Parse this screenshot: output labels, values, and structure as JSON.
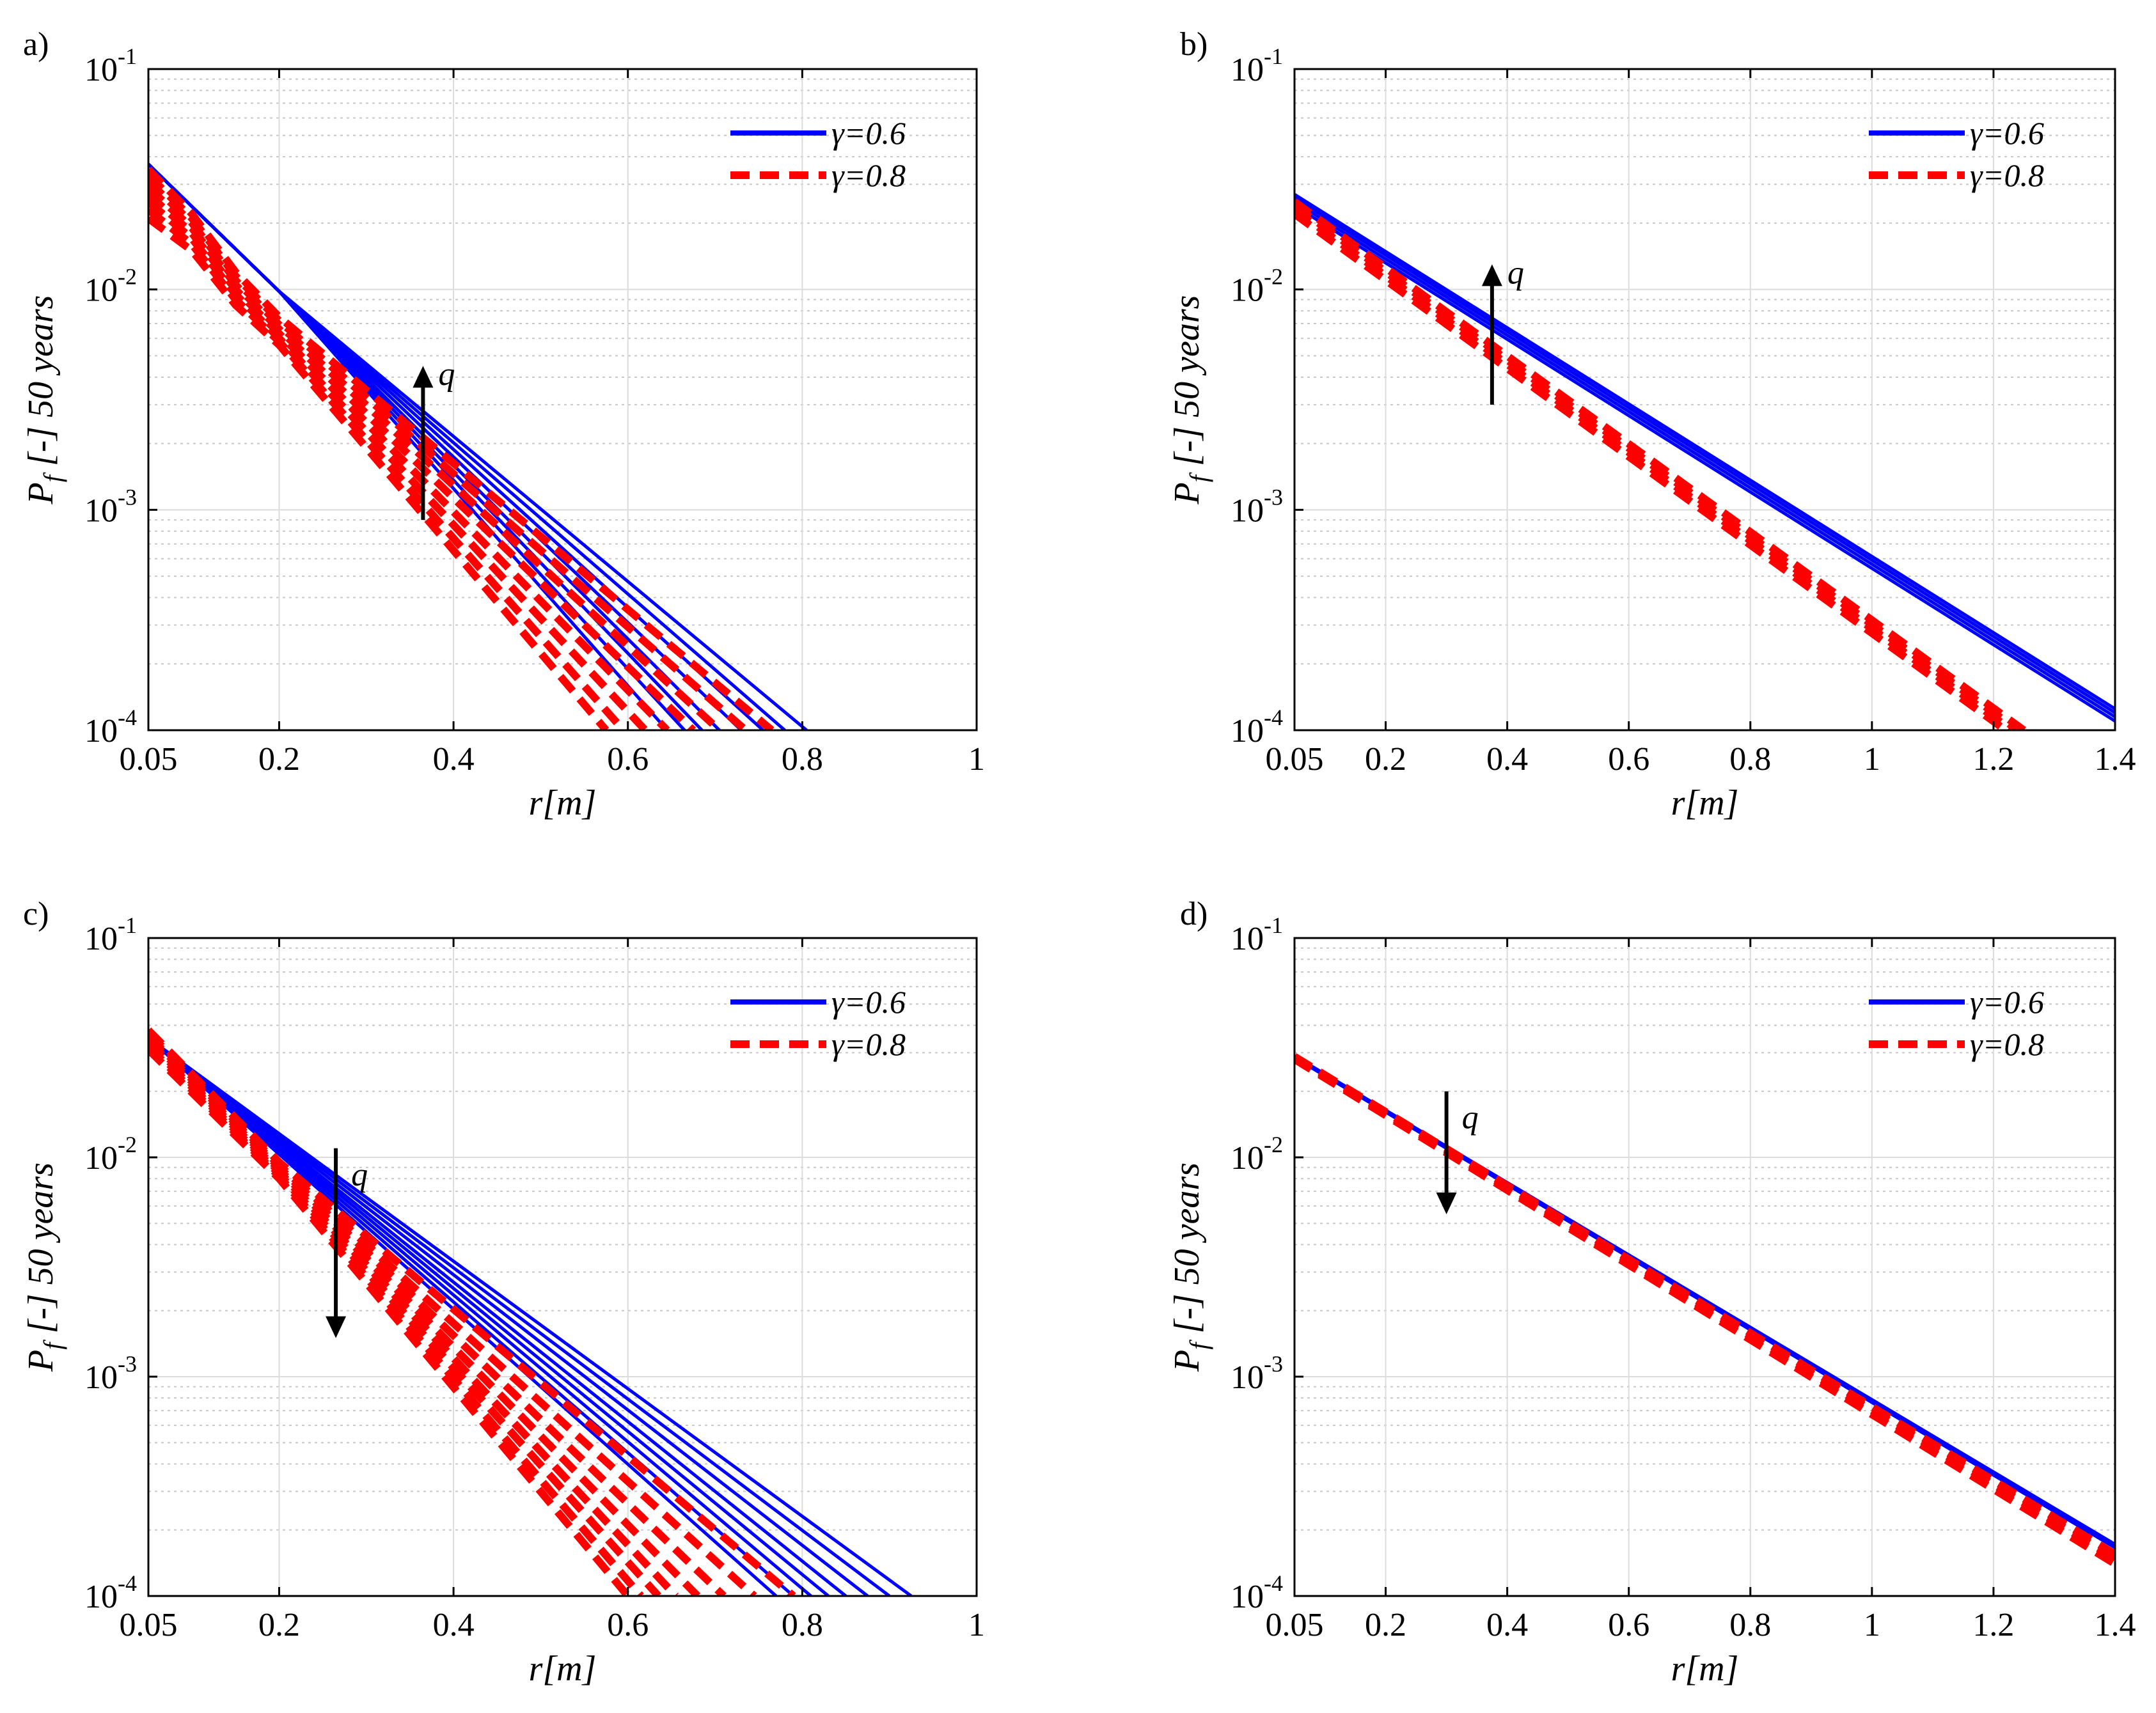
{
  "panels": [
    {
      "label": "a)",
      "xlabel": "r[m]",
      "ylabel_main": "P",
      "ylabel_sub": "f",
      "ylabel_rest": " [-] 50 years",
      "xlim": [
        0.05,
        1.0
      ],
      "x_ticks": [
        0.05,
        0.2,
        0.4,
        0.6,
        0.8,
        1.0
      ],
      "x_tick_labels": [
        "0.05",
        "0.2",
        "0.4",
        "0.6",
        "0.8",
        "1"
      ],
      "ylim": [
        0.0001,
        0.1
      ],
      "y_tick_labels": [
        {
          "base": "10",
          "exp": "-4"
        },
        {
          "base": "10",
          "exp": "-3"
        },
        {
          "base": "10",
          "exp": "-2"
        },
        {
          "base": "10",
          "exp": "-1"
        }
      ],
      "legend": [
        "γ=0.6",
        "γ=0.8"
      ],
      "arrow": {
        "label": "q",
        "direction": "up",
        "x": 0.365,
        "y_from": 0.0009,
        "y_to": 0.0045
      }
    },
    {
      "label": "b)",
      "xlabel": "r[m]",
      "ylabel_main": "P",
      "ylabel_sub": "f",
      "ylabel_rest": " [-] 50 years",
      "xlim": [
        0.05,
        1.4
      ],
      "x_ticks": [
        0.05,
        0.2,
        0.4,
        0.6,
        0.8,
        1.0,
        1.2,
        1.4
      ],
      "x_tick_labels": [
        "0.05",
        "0.2",
        "0.4",
        "0.6",
        "0.8",
        "1",
        "1.2",
        "1.4"
      ],
      "ylim": [
        0.0001,
        0.1
      ],
      "y_tick_labels": [
        {
          "base": "10",
          "exp": "-4"
        },
        {
          "base": "10",
          "exp": "-3"
        },
        {
          "base": "10",
          "exp": "-2"
        },
        {
          "base": "10",
          "exp": "-1"
        }
      ],
      "legend": [
        "γ=0.6",
        "γ=0.8"
      ],
      "arrow": {
        "label": "q",
        "direction": "up",
        "x": 0.375,
        "y_from": 0.003,
        "y_to": 0.013
      }
    },
    {
      "label": "c)",
      "xlabel": "r[m]",
      "ylabel_main": "P",
      "ylabel_sub": "f",
      "ylabel_rest": " [-] 50 years",
      "xlim": [
        0.05,
        1.0
      ],
      "x_ticks": [
        0.05,
        0.2,
        0.4,
        0.6,
        0.8,
        1.0
      ],
      "x_tick_labels": [
        "0.05",
        "0.2",
        "0.4",
        "0.6",
        "0.8",
        "1"
      ],
      "ylim": [
        0.0001,
        0.1
      ],
      "y_tick_labels": [
        {
          "base": "10",
          "exp": "-4"
        },
        {
          "base": "10",
          "exp": "-3"
        },
        {
          "base": "10",
          "exp": "-2"
        },
        {
          "base": "10",
          "exp": "-1"
        }
      ],
      "legend": [
        "γ=0.6",
        "γ=0.8"
      ],
      "arrow": {
        "label": "q",
        "direction": "down",
        "x": 0.265,
        "y_from": 0.011,
        "y_to": 0.0015
      }
    },
    {
      "label": "d)",
      "xlabel": "r[m]",
      "ylabel_main": "P",
      "ylabel_sub": "f",
      "ylabel_rest": " [-] 50 years",
      "xlim": [
        0.05,
        1.4
      ],
      "x_ticks": [
        0.05,
        0.2,
        0.4,
        0.6,
        0.8,
        1.0,
        1.2,
        1.4
      ],
      "x_tick_labels": [
        "0.05",
        "0.2",
        "0.4",
        "0.6",
        "0.8",
        "1",
        "1.2",
        "1.4"
      ],
      "ylim": [
        0.0001,
        0.1
      ],
      "y_tick_labels": [
        {
          "base": "10",
          "exp": "-4"
        },
        {
          "base": "10",
          "exp": "-3"
        },
        {
          "base": "10",
          "exp": "-2"
        },
        {
          "base": "10",
          "exp": "-1"
        }
      ],
      "legend": [
        "γ=0.6",
        "γ=0.8"
      ],
      "arrow": {
        "label": "q",
        "direction": "down",
        "x": 0.3,
        "y_from": 0.02,
        "y_to": 0.0055
      }
    }
  ],
  "chart_data": [
    {
      "type": "line",
      "panel": "a)",
      "y_scale": "log",
      "grid": true,
      "legend_position": "top-right",
      "xlim": [
        0.05,
        1.0
      ],
      "ylim": [
        0.0001,
        0.1
      ],
      "xlabel": "r[m]",
      "ylabel": "P_f [-] 50 years",
      "colors": {
        "γ=0.6": "#0000ff",
        "γ=0.8": "#ff0000"
      },
      "series": [
        {
          "name": "γ=0.6",
          "style": "solid",
          "curves": [
            {
              "x": [
                0.05,
                0.2,
                0.805
              ],
              "y": [
                0.037,
                0.0098,
                0.0001
              ]
            },
            {
              "x": [
                0.05,
                0.2,
                0.78
              ],
              "y": [
                0.037,
                0.0098,
                0.0001
              ]
            },
            {
              "x": [
                0.05,
                0.2,
                0.755
              ],
              "y": [
                0.037,
                0.0098,
                0.0001
              ]
            },
            {
              "x": [
                0.05,
                0.2,
                0.73
              ],
              "y": [
                0.037,
                0.0098,
                0.0001
              ]
            },
            {
              "x": [
                0.05,
                0.2,
                0.705
              ],
              "y": [
                0.037,
                0.0098,
                0.0001
              ]
            },
            {
              "x": [
                0.05,
                0.2,
                0.685
              ],
              "y": [
                0.037,
                0.0098,
                0.0001
              ]
            },
            {
              "x": [
                0.05,
                0.2,
                0.665
              ],
              "y": [
                0.037,
                0.0098,
                0.0001
              ]
            },
            {
              "x": [
                0.05,
                0.2,
                0.645
              ],
              "y": [
                0.037,
                0.0098,
                0.0001
              ]
            }
          ]
        },
        {
          "name": "γ=0.8",
          "style": "dashed",
          "curves": [
            {
              "x": [
                0.05,
                0.1,
                0.15,
                0.2,
                0.765
              ],
              "y": [
                0.035,
                0.022,
                0.012,
                0.0075,
                0.0001
              ]
            },
            {
              "x": [
                0.05,
                0.1,
                0.15,
                0.2,
                0.735
              ],
              "y": [
                0.033,
                0.021,
                0.0115,
                0.0072,
                0.0001
              ]
            },
            {
              "x": [
                0.05,
                0.1,
                0.15,
                0.2,
                0.705
              ],
              "y": [
                0.031,
                0.02,
                0.011,
                0.0069,
                0.0001
              ]
            },
            {
              "x": [
                0.05,
                0.1,
                0.15,
                0.2,
                0.675
              ],
              "y": [
                0.029,
                0.019,
                0.0105,
                0.0066,
                0.0001
              ]
            },
            {
              "x": [
                0.05,
                0.1,
                0.15,
                0.2,
                0.645
              ],
              "y": [
                0.027,
                0.018,
                0.01,
                0.0063,
                0.0001
              ]
            },
            {
              "x": [
                0.05,
                0.1,
                0.15,
                0.2,
                0.62
              ],
              "y": [
                0.025,
                0.017,
                0.0095,
                0.006,
                0.0001
              ]
            },
            {
              "x": [
                0.05,
                0.1,
                0.15,
                0.2,
                0.595
              ],
              "y": [
                0.023,
                0.016,
                0.009,
                0.0058,
                0.0001
              ]
            },
            {
              "x": [
                0.05,
                0.1,
                0.15,
                0.2,
                0.575
              ],
              "y": [
                0.021,
                0.015,
                0.0085,
                0.0056,
                0.0001
              ]
            }
          ]
        }
      ]
    },
    {
      "type": "line",
      "panel": "b)",
      "y_scale": "log",
      "grid": true,
      "legend_position": "top-right",
      "xlim": [
        0.05,
        1.4
      ],
      "ylim": [
        0.0001,
        0.1
      ],
      "xlabel": "r[m]",
      "ylabel": "P_f [-] 50 years",
      "colors": {
        "γ=0.6": "#0000ff",
        "γ=0.8": "#ff0000"
      },
      "series": [
        {
          "name": "γ=0.6",
          "style": "solid",
          "curves": [
            {
              "x": [
                0.05,
                1.4
              ],
              "y": [
                0.027,
                0.000125
              ]
            },
            {
              "x": [
                0.05,
                1.4
              ],
              "y": [
                0.026,
                0.00012
              ]
            },
            {
              "x": [
                0.05,
                1.4
              ],
              "y": [
                0.025,
                0.000115
              ]
            },
            {
              "x": [
                0.05,
                1.4
              ],
              "y": [
                0.024,
                0.00011
              ]
            }
          ]
        },
        {
          "name": "γ=0.8",
          "style": "dashed",
          "curves": [
            {
              "x": [
                0.05,
                1.25
              ],
              "y": [
                0.025,
                0.0001
              ]
            },
            {
              "x": [
                0.05,
                1.24
              ],
              "y": [
                0.024,
                0.0001
              ]
            },
            {
              "x": [
                0.05,
                1.23
              ],
              "y": [
                0.023,
                0.0001
              ]
            },
            {
              "x": [
                0.05,
                1.22
              ],
              "y": [
                0.022,
                0.0001
              ]
            }
          ]
        }
      ]
    },
    {
      "type": "line",
      "panel": "c)",
      "y_scale": "log",
      "grid": true,
      "legend_position": "top-right",
      "xlim": [
        0.05,
        1.0
      ],
      "ylim": [
        0.0001,
        0.1
      ],
      "xlabel": "r[m]",
      "ylabel": "P_f [-] 50 years",
      "colors": {
        "γ=0.6": "#0000ff",
        "γ=0.8": "#ff0000"
      },
      "series": [
        {
          "name": "γ=0.6",
          "style": "solid",
          "curves": [
            {
              "x": [
                0.05,
                0.925
              ],
              "y": [
                0.035,
                0.0001
              ]
            },
            {
              "x": [
                0.05,
                0.9
              ],
              "y": [
                0.035,
                0.0001
              ]
            },
            {
              "x": [
                0.05,
                0.875
              ],
              "y": [
                0.035,
                0.0001
              ]
            },
            {
              "x": [
                0.05,
                0.85
              ],
              "y": [
                0.035,
                0.0001
              ]
            },
            {
              "x": [
                0.05,
                0.83
              ],
              "y": [
                0.035,
                0.0001
              ]
            },
            {
              "x": [
                0.05,
                0.81
              ],
              "y": [
                0.035,
                0.0001
              ]
            },
            {
              "x": [
                0.05,
                0.79
              ],
              "y": [
                0.035,
                0.0001
              ]
            },
            {
              "x": [
                0.05,
                0.77
              ],
              "y": [
                0.035,
                0.0001
              ]
            }
          ]
        },
        {
          "name": "γ=0.8",
          "style": "dashed",
          "curves": [
            {
              "x": [
                0.05,
                0.2,
                0.79
              ],
              "y": [
                0.038,
                0.0095,
                0.0001
              ]
            },
            {
              "x": [
                0.05,
                0.2,
                0.745
              ],
              "y": [
                0.037,
                0.0092,
                0.0001
              ]
            },
            {
              "x": [
                0.05,
                0.2,
                0.71
              ],
              "y": [
                0.036,
                0.009,
                0.0001
              ]
            },
            {
              "x": [
                0.05,
                0.2,
                0.68
              ],
              "y": [
                0.035,
                0.0088,
                0.0001
              ]
            },
            {
              "x": [
                0.05,
                0.2,
                0.655
              ],
              "y": [
                0.034,
                0.0086,
                0.0001
              ]
            },
            {
              "x": [
                0.05,
                0.2,
                0.635
              ],
              "y": [
                0.033,
                0.0084,
                0.0001
              ]
            },
            {
              "x": [
                0.05,
                0.2,
                0.615
              ],
              "y": [
                0.032,
                0.0082,
                0.0001
              ]
            },
            {
              "x": [
                0.05,
                0.2,
                0.6
              ],
              "y": [
                0.031,
                0.008,
                0.0001
              ]
            }
          ]
        }
      ]
    },
    {
      "type": "line",
      "panel": "d)",
      "y_scale": "log",
      "grid": true,
      "legend_position": "top-right",
      "xlim": [
        0.05,
        1.4
      ],
      "ylim": [
        0.0001,
        0.1
      ],
      "xlabel": "r[m]",
      "ylabel": "P_f [-] 50 years",
      "colors": {
        "γ=0.6": "#0000ff",
        "γ=0.8": "#ff0000"
      },
      "series": [
        {
          "name": "γ=0.6",
          "style": "solid",
          "curves": [
            {
              "x": [
                0.05,
                1.4
              ],
              "y": [
                0.029,
                0.000172
              ]
            },
            {
              "x": [
                0.05,
                1.4
              ],
              "y": [
                0.0285,
                0.000166
              ]
            }
          ]
        },
        {
          "name": "γ=0.8",
          "style": "dashed",
          "curves": [
            {
              "x": [
                0.05,
                1.4
              ],
              "y": [
                0.0288,
                0.000155
              ]
            },
            {
              "x": [
                0.05,
                1.4
              ],
              "y": [
                0.0284,
                0.000148
              ]
            },
            {
              "x": [
                0.05,
                1.4
              ],
              "y": [
                0.028,
                0.00014
              ]
            }
          ]
        }
      ]
    }
  ]
}
